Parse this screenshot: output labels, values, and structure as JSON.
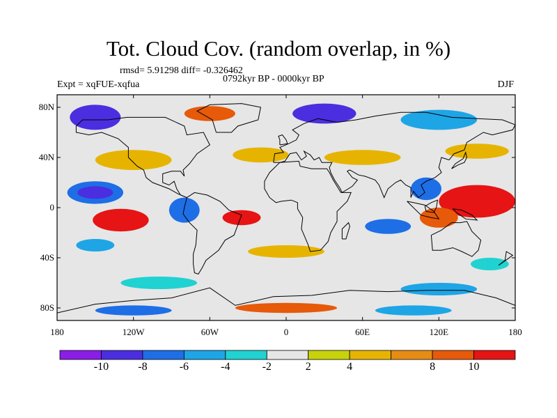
{
  "title": "Tot. Cloud Cov. (random overlap, in %)",
  "stats": "rmsd= 5.91298 diff= -0.326462",
  "period": "0792kyr BP - 0000kyr BP",
  "experiment": "Expt = xqFUE-xqfua",
  "season": "DJF",
  "map": {
    "lon_range": [
      -180,
      180
    ],
    "lat_range": [
      -90,
      90
    ],
    "y_ticks": [
      {
        "lat": 80,
        "label": "80N"
      },
      {
        "lat": 40,
        "label": "40N"
      },
      {
        "lat": 0,
        "label": "0"
      },
      {
        "lat": -40,
        "label": "40S"
      },
      {
        "lat": -80,
        "label": "80S"
      }
    ],
    "x_ticks": [
      {
        "lon": -180,
        "label": "180"
      },
      {
        "lon": -120,
        "label": "120W"
      },
      {
        "lon": -60,
        "label": "60W"
      },
      {
        "lon": 0,
        "label": "0"
      },
      {
        "lon": 60,
        "label": "60E"
      },
      {
        "lon": 120,
        "label": "120E"
      },
      {
        "lon": 180,
        "label": "180"
      }
    ]
  },
  "colorbar": {
    "colors": [
      "#8a1ee6",
      "#4b2ee0",
      "#1e6ee6",
      "#1ea5e6",
      "#20d2d2",
      "#e6e6e6",
      "#c8d20a",
      "#e6b400",
      "#e68c14",
      "#e65a0a",
      "#e61414"
    ],
    "labels": [
      {
        "value": -10,
        "text": "-10"
      },
      {
        "value": -8,
        "text": "-8"
      },
      {
        "value": -6,
        "text": "-6"
      },
      {
        "value": -4,
        "text": "-4"
      },
      {
        "value": -2,
        "text": "-2"
      },
      {
        "value": 2,
        "text": "2"
      },
      {
        "value": 4,
        "text": "4"
      },
      {
        "value": 8,
        "text": "8"
      },
      {
        "value": 10,
        "text": "10"
      }
    ]
  },
  "anomaly_regions": [
    {
      "lon": 150,
      "lat": 5,
      "rlon": 30,
      "rlat": 13,
      "level": 10
    },
    {
      "lon": 120,
      "lat": -8,
      "rlon": 15,
      "rlat": 8,
      "level": 8
    },
    {
      "lon": -130,
      "lat": -10,
      "rlon": 22,
      "rlat": 9,
      "level": 10
    },
    {
      "lon": -35,
      "lat": -8,
      "rlon": 15,
      "rlat": 6,
      "level": 10
    },
    {
      "lon": -150,
      "lat": 12,
      "rlon": 22,
      "rlat": 9,
      "level": -8
    },
    {
      "lon": -150,
      "lat": 12,
      "rlon": 14,
      "rlat": 5,
      "level": -10
    },
    {
      "lon": -80,
      "lat": -2,
      "rlon": 12,
      "rlat": 10,
      "level": -8
    },
    {
      "lon": 110,
      "lat": 15,
      "rlon": 12,
      "rlat": 9,
      "level": -8
    },
    {
      "lon": 80,
      "lat": -15,
      "rlon": 18,
      "rlat": 6,
      "level": -8
    },
    {
      "lon": -120,
      "lat": 38,
      "rlon": 30,
      "rlat": 8,
      "level": 4
    },
    {
      "lon": -20,
      "lat": 42,
      "rlon": 22,
      "rlat": 6,
      "level": 4
    },
    {
      "lon": 150,
      "lat": 45,
      "rlon": 25,
      "rlat": 6,
      "level": 4
    },
    {
      "lon": 60,
      "lat": 40,
      "rlon": 30,
      "rlat": 6,
      "level": 4
    },
    {
      "lon": 0,
      "lat": -35,
      "rlon": 30,
      "rlat": 5,
      "level": 4
    },
    {
      "lon": -150,
      "lat": 72,
      "rlon": 20,
      "rlat": 10,
      "level": -10
    },
    {
      "lon": 30,
      "lat": 75,
      "rlon": 25,
      "rlat": 8,
      "level": -10
    },
    {
      "lon": -60,
      "lat": 75,
      "rlon": 20,
      "rlat": 6,
      "level": 8
    },
    {
      "lon": 120,
      "lat": 70,
      "rlon": 30,
      "rlat": 8,
      "level": -6
    },
    {
      "lon": -100,
      "lat": -60,
      "rlon": 30,
      "rlat": 5,
      "level": -4
    },
    {
      "lon": 120,
      "lat": -65,
      "rlon": 30,
      "rlat": 5,
      "level": -6
    },
    {
      "lon": -150,
      "lat": -30,
      "rlon": 15,
      "rlat": 5,
      "level": -6
    },
    {
      "lon": 160,
      "lat": -45,
      "rlon": 15,
      "rlat": 5,
      "level": -4
    },
    {
      "lon": 0,
      "lat": -80,
      "rlon": 40,
      "rlat": 4,
      "level": 8
    },
    {
      "lon": -120,
      "lat": -82,
      "rlon": 30,
      "rlat": 4,
      "level": -8
    },
    {
      "lon": 100,
      "lat": -82,
      "rlon": 30,
      "rlat": 4,
      "level": -6
    }
  ]
}
